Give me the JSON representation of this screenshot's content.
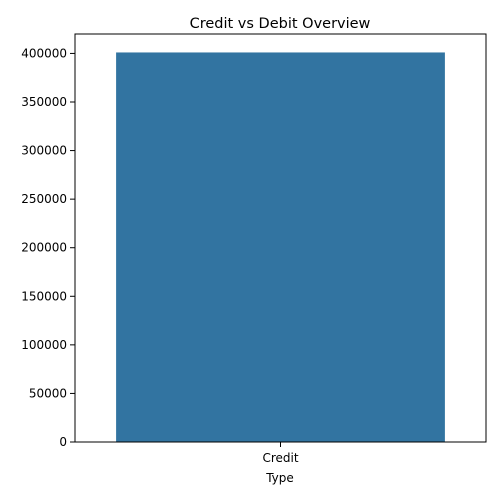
{
  "chart_data": {
    "type": "bar",
    "title": "Credit vs Debit Overview",
    "xlabel": "Type",
    "ylabel": "",
    "categories": [
      "Credit"
    ],
    "values": [
      401000
    ],
    "ylim": [
      0,
      420000
    ],
    "yticks": [
      0,
      50000,
      100000,
      150000,
      200000,
      250000,
      300000,
      350000,
      400000
    ],
    "bar_color": "#3274a1",
    "grid": false
  }
}
